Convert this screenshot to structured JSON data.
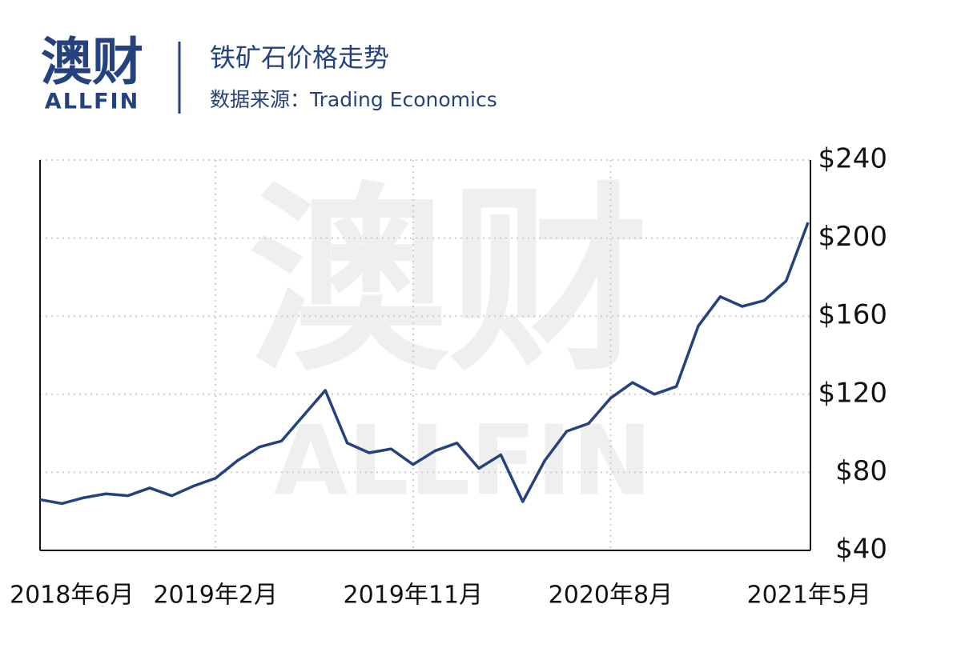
{
  "logo": {
    "cn": "澳财",
    "en": "ALLFIN"
  },
  "watermark": {
    "cn": "澳财",
    "en": "ALLFIN"
  },
  "chart_data": {
    "type": "line",
    "title": "铁矿石价格走势",
    "subtitle": "数据来源：Trading Economics",
    "x": [
      "2018-06",
      "2018-07",
      "2018-08",
      "2018-09",
      "2018-10",
      "2018-11",
      "2018-12",
      "2019-01",
      "2019-02",
      "2019-03",
      "2019-04",
      "2019-05",
      "2019-06",
      "2019-07",
      "2019-08",
      "2019-09",
      "2019-10",
      "2019-11",
      "2019-12",
      "2020-01",
      "2020-02",
      "2020-03",
      "2020-04",
      "2020-05",
      "2020-06",
      "2020-07",
      "2020-08",
      "2020-09",
      "2020-10",
      "2020-11",
      "2020-12",
      "2021-01",
      "2021-02",
      "2021-03",
      "2021-04",
      "2021-05"
    ],
    "series": [
      {
        "name": "铁矿石价格",
        "color": "#25427e",
        "values": [
          66,
          64,
          67,
          69,
          68,
          72,
          68,
          73,
          77,
          86,
          93,
          96,
          109,
          122,
          95,
          90,
          92,
          84,
          91,
          95,
          82,
          89,
          65,
          86,
          101,
          105,
          118,
          126,
          120,
          124,
          155,
          170,
          165,
          168,
          178,
          208
        ]
      }
    ],
    "xticks": [
      {
        "value": "2018-06",
        "label": "2018年6月"
      },
      {
        "value": "2019-02",
        "label": "2019年2月"
      },
      {
        "value": "2019-11",
        "label": "2019年11月"
      },
      {
        "value": "2020-08",
        "label": "2020年8月"
      },
      {
        "value": "2021-05",
        "label": "2021年5月"
      }
    ],
    "ylim": [
      40,
      240
    ],
    "yticks": [
      {
        "value": 40,
        "label": "$40"
      },
      {
        "value": 80,
        "label": "$80"
      },
      {
        "value": 120,
        "label": "$120"
      },
      {
        "value": 160,
        "label": "$160"
      },
      {
        "value": 200,
        "label": "$200"
      },
      {
        "value": 240,
        "label": "$240"
      }
    ],
    "grid": true
  }
}
